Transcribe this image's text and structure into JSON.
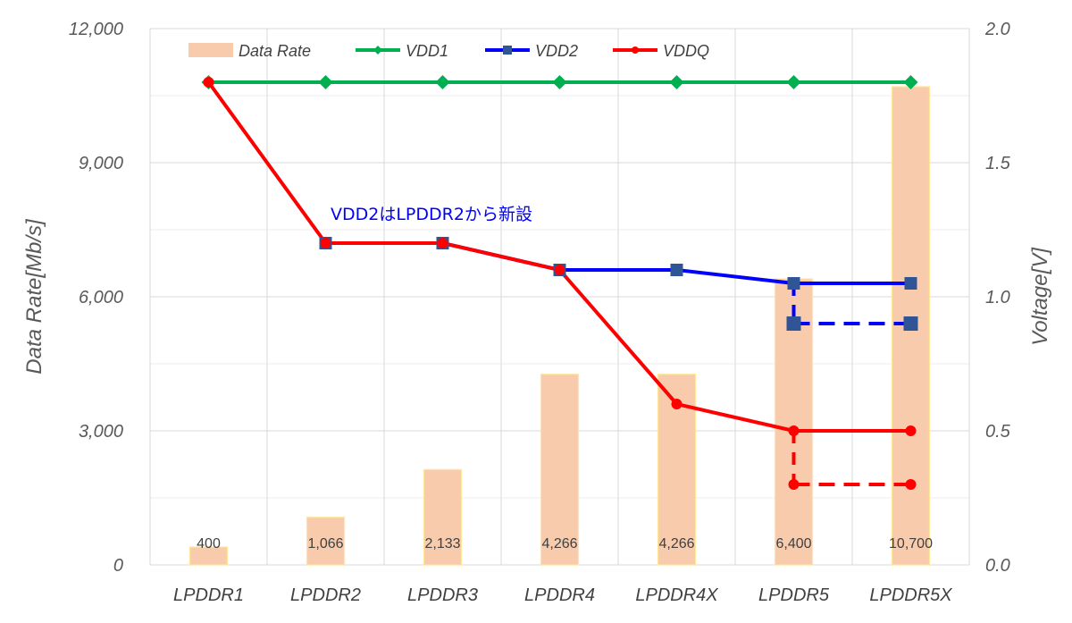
{
  "chart_data": {
    "type": "bar+line",
    "categories": [
      "LPDDR1",
      "LPDDR2",
      "LPDDR3",
      "LPDDR4",
      "LPDDR4X",
      "LPDDR5",
      "LPDDR5X"
    ],
    "bar_series": {
      "name": "Data Rate",
      "axis": "left",
      "values": [
        400,
        1066,
        2133,
        4266,
        4266,
        6400,
        10700
      ],
      "labels": [
        "400",
        "1,066",
        "2,133",
        "4,266",
        "4,266",
        "6,400",
        "10,700"
      ],
      "color": "#F8CBAD",
      "edge_color": "#FFE699"
    },
    "line_series": [
      {
        "name": "VDD1",
        "axis": "right",
        "color": "#00B050",
        "marker": "diamond",
        "values": [
          1.8,
          1.8,
          1.8,
          1.8,
          1.8,
          1.8,
          1.8
        ]
      },
      {
        "name": "VDD2",
        "axis": "right",
        "color": "#0000FF",
        "marker": "square",
        "marker_color": "#2F5597",
        "values": [
          null,
          1.2,
          1.2,
          1.1,
          1.1,
          1.05,
          1.05
        ]
      },
      {
        "name": "VDDQ",
        "axis": "right",
        "color": "#FF0000",
        "marker": "circle",
        "values": [
          1.8,
          1.2,
          1.2,
          1.1,
          0.6,
          0.5,
          0.5
        ]
      }
    ],
    "dashed_series": [
      {
        "of": "VDD2",
        "color": "#0000FF",
        "marker": "square",
        "marker_color": "#2F5597",
        "x": [
          "LPDDR5",
          "LPDDR5X"
        ],
        "values": [
          0.9,
          0.9
        ],
        "from": 1.05
      },
      {
        "of": "VDDQ",
        "color": "#FF0000",
        "marker": "circle",
        "x": [
          "LPDDR5",
          "LPDDR5X"
        ],
        "values": [
          0.3,
          0.3
        ],
        "from": 0.5
      }
    ],
    "left_axis": {
      "title": "Data Rate[Mb/s]",
      "min": 0,
      "max": 12000,
      "step": 3000,
      "tick_labels": [
        "0",
        "3,000",
        "6,000",
        "9,000",
        "12,000"
      ]
    },
    "right_axis": {
      "title": "Voltage[V]",
      "min": 0,
      "max": 2.0,
      "step": 0.5,
      "tick_labels": [
        "0.0",
        "0.5",
        "1.0",
        "1.5",
        "2.0"
      ]
    },
    "annotation": {
      "text": "VDD2はLPDDR2から新設",
      "color": "#0000FF",
      "near": "LPDDR2"
    },
    "legend": {
      "position": "top",
      "entries": [
        "Data Rate",
        "VDD1",
        "VDD2",
        "VDDQ"
      ]
    },
    "grid": true
  }
}
